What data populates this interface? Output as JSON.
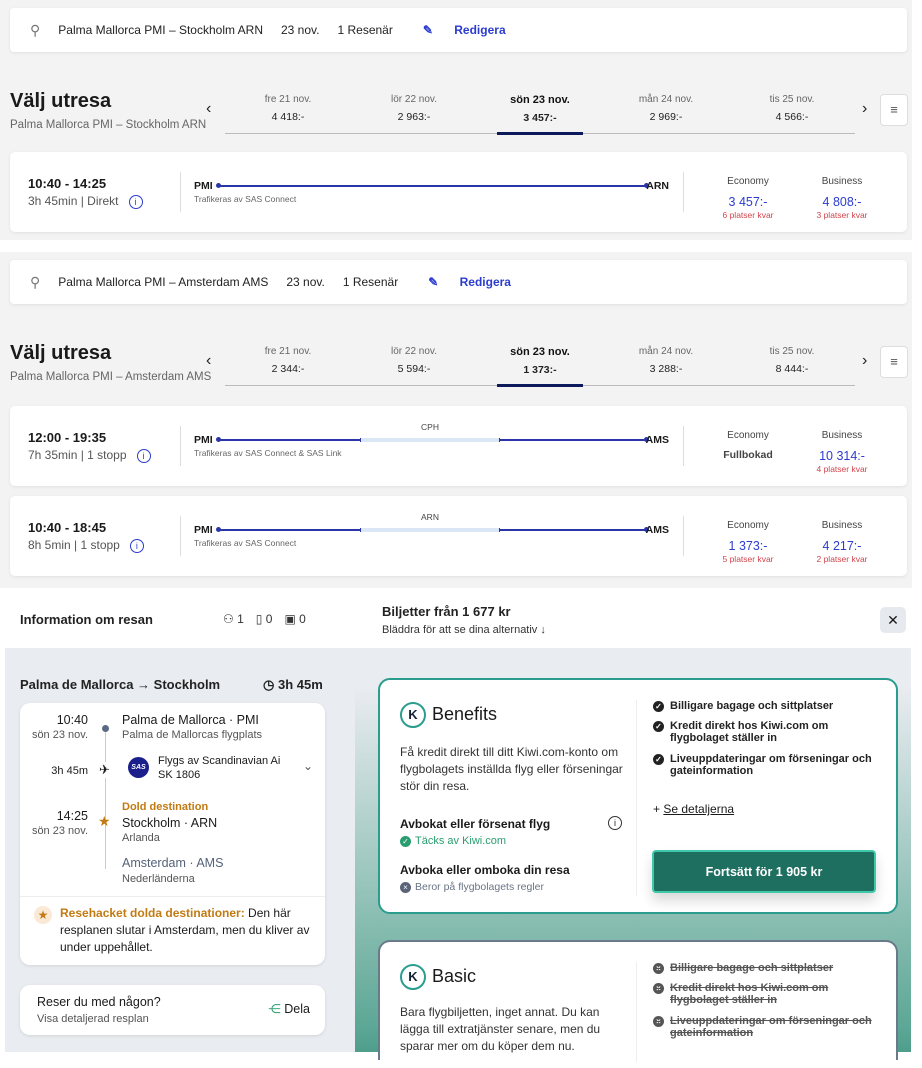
{
  "sas_panels": [
    {
      "search": {
        "route": "Palma Mallorca PMI – Stockholm ARN",
        "date": "23 nov.",
        "travelers": "1 Resenär",
        "edit": "Redigera"
      },
      "title": "Välj utresa",
      "subtitle": "Palma Mallorca PMI – Stockholm ARN",
      "dates": [
        {
          "day": "fre 21 nov.",
          "price": "4 418:-"
        },
        {
          "day": "lör 22 nov.",
          "price": "2 963:-"
        },
        {
          "day": "sön 23 nov.",
          "price": "3 457:-",
          "selected": true
        },
        {
          "day": "mån 24 nov.",
          "price": "2 969:-"
        },
        {
          "day": "tis 25 nov.",
          "price": "4 566:-"
        }
      ],
      "flights": [
        {
          "times": "10:40 - 14:25",
          "duration": "3h 45min | Direkt",
          "from": "PMI",
          "to": "ARN",
          "stop": "",
          "operator": "Trafikeras av SAS Connect",
          "economy": {
            "label": "Economy",
            "price": "3 457:-",
            "seats": "6 platser kvar"
          },
          "business": {
            "label": "Business",
            "price": "4 808:-",
            "seats": "3 platser kvar"
          }
        }
      ]
    },
    {
      "search": {
        "route": "Palma Mallorca PMI – Amsterdam AMS",
        "date": "23 nov.",
        "travelers": "1 Resenär",
        "edit": "Redigera"
      },
      "title": "Välj utresa",
      "subtitle": "Palma Mallorca PMI – Amsterdam AMS",
      "dates": [
        {
          "day": "fre 21 nov.",
          "price": "2 344:-"
        },
        {
          "day": "lör 22 nov.",
          "price": "5 594:-"
        },
        {
          "day": "sön 23 nov.",
          "price": "1 373:-",
          "selected": true
        },
        {
          "day": "mån 24 nov.",
          "price": "3 288:-"
        },
        {
          "day": "tis 25 nov.",
          "price": "8 444:-"
        }
      ],
      "flights": [
        {
          "times": "12:00 - 19:35",
          "duration": "7h 35min | 1 stopp",
          "from": "PMI",
          "to": "AMS",
          "stop": "CPH",
          "operator": "Trafikeras av SAS Connect & SAS Link",
          "economy": {
            "label": "Economy",
            "price": "Fullbokad",
            "seats": ""
          },
          "business": {
            "label": "Business",
            "price": "10 314:-",
            "seats": "4 platser kvar"
          }
        },
        {
          "times": "10:40 - 18:45",
          "duration": "8h 5min | 1 stopp",
          "from": "PMI",
          "to": "AMS",
          "stop": "ARN",
          "operator": "Trafikeras av SAS Connect",
          "economy": {
            "label": "Economy",
            "price": "1 373:-",
            "seats": "5 platser kvar"
          },
          "business": {
            "label": "Business",
            "price": "4 217:-",
            "seats": "2 platser kvar"
          }
        }
      ]
    }
  ],
  "kiwi": {
    "info_title": "Information om resan",
    "passengers": "1",
    "cabin_bags": "0",
    "checked_bags": "0",
    "tickets_from": "Biljetter från 1 677 kr",
    "scroll_hint": "Bläddra för att se dina alternativ ↓",
    "route_title": "Palma de Mallorca → Stockholm",
    "route_duration": "3h 45m",
    "dep_time": "10:40",
    "dep_date": "sön 23 nov.",
    "dep_place": "Palma de Mallorca · PMI",
    "dep_airport": "Palma de Mallorcas flygplats",
    "flight_duration": "3h 45m",
    "operated_by": "Flygs av Scandinavian Ai",
    "flight_no": "SK 1806",
    "airline_logo": "SAS",
    "arr_time": "14:25",
    "arr_date": "sön 23 nov.",
    "hidden_label": "Dold destination",
    "arr_place": "Stockholm · ARN",
    "arr_airport": "Arlanda",
    "final_place": "Amsterdam · AMS",
    "final_country": "Nederländerna",
    "hack_title": "Resehacket dolda destinationer:",
    "hack_text": " Den här resplanen slutar i Amsterdam, men du kliver av under uppehållet.",
    "share_title": "Reser du med någon?",
    "share_sub": "Visa detaljerad resplan",
    "share_btn": "Dela",
    "benefits": {
      "name": "Benefits",
      "desc": "Få kredit direkt till ditt Kiwi.com-konto om flygbolagets inställda flyg eller förseningar stör din resa.",
      "cancel_title": "Avbokat eller försenat flyg",
      "cancel_status": "Täcks av Kiwi.com",
      "rebook_title": "Avboka eller omboka din resa",
      "rebook_status": "Beror på flygbolagets regler",
      "features": [
        "Billigare bagage och sittplatser",
        "Kredit direkt hos Kiwi.com om flygbolaget ställer in",
        "Liveuppdateringar om förseningar och gateinformation"
      ],
      "details": "Se detaljerna",
      "cta": "Fortsätt för 1 905 kr"
    },
    "basic": {
      "name": "Basic",
      "desc": "Bara flygbiljetten, inget annat. Du kan lägga till extratjänster senare, men du sparar mer om du köper dem nu.",
      "features": [
        "Billigare bagage och sittplatser",
        "Kredit direkt hos Kiwi.com om flygbolaget ställer in",
        "Liveuppdateringar om förseningar och gateinformation"
      ]
    },
    "colors": {
      "accent": "#1f6f61",
      "hidden": "#c27a12",
      "sas_blue": "#2b3ccf"
    }
  }
}
